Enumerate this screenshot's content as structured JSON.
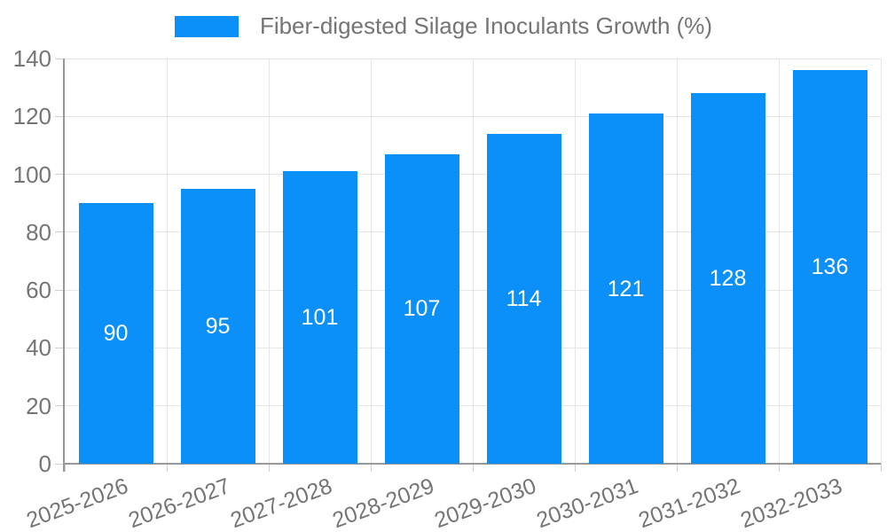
{
  "chart_data": {
    "type": "bar",
    "title": "Fiber-digested Silage Inoculants Growth (%)",
    "categories": [
      "2025-2026",
      "2026-2027",
      "2027-2028",
      "2028-2029",
      "2029-2030",
      "2030-2031",
      "2031-2032",
      "2032-2033"
    ],
    "values": [
      90,
      95,
      101,
      107,
      114,
      121,
      128,
      136
    ],
    "xlabel": "",
    "ylabel": "",
    "ylim": [
      0,
      140
    ],
    "ytick_step": 20,
    "yticks": [
      0,
      20,
      40,
      60,
      80,
      100,
      120,
      140
    ],
    "grid": true,
    "legend_position": "top-center",
    "x_label_rotation_deg": -20,
    "value_labels_position": "inside-center",
    "colors": {
      "bar": "#0a90f8",
      "value_label": "#ffffff",
      "axis_text": "#757575",
      "gridline": "#e6e6e6",
      "axis_line": "#989898"
    }
  }
}
